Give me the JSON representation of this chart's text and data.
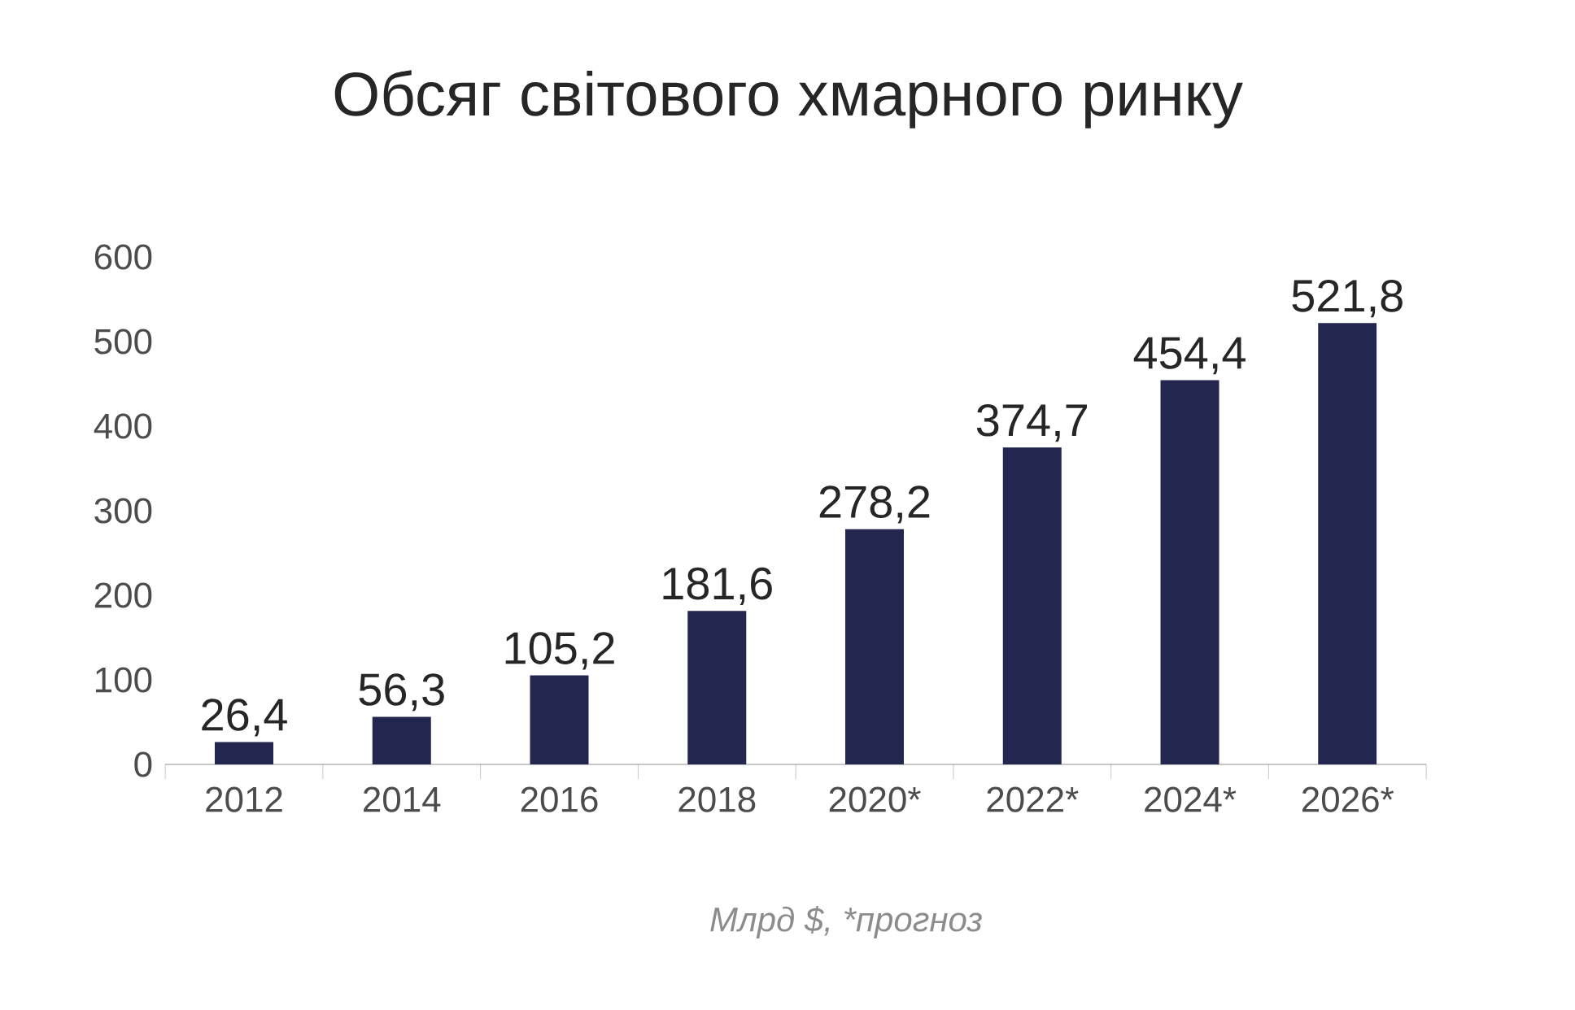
{
  "chart_data": {
    "type": "bar",
    "title": "Обсяг світового хмарного ринку",
    "xlabel": "Млрд $, *прогноз",
    "categories": [
      "2012",
      "2014",
      "2016",
      "2018",
      "2020*",
      "2022*",
      "2024*",
      "2026*"
    ],
    "values": [
      26.4,
      56.3,
      105.2,
      181.6,
      278.2,
      374.7,
      454.4,
      521.8
    ],
    "value_labels": [
      "26,4",
      "56,3",
      "105,2",
      "181,6",
      "278,2",
      "374,7",
      "454,4",
      "521,8"
    ],
    "color": "#23264f",
    "ylim": [
      0,
      600
    ],
    "yticks": [
      0,
      100,
      200,
      300,
      400,
      500,
      600
    ]
  }
}
